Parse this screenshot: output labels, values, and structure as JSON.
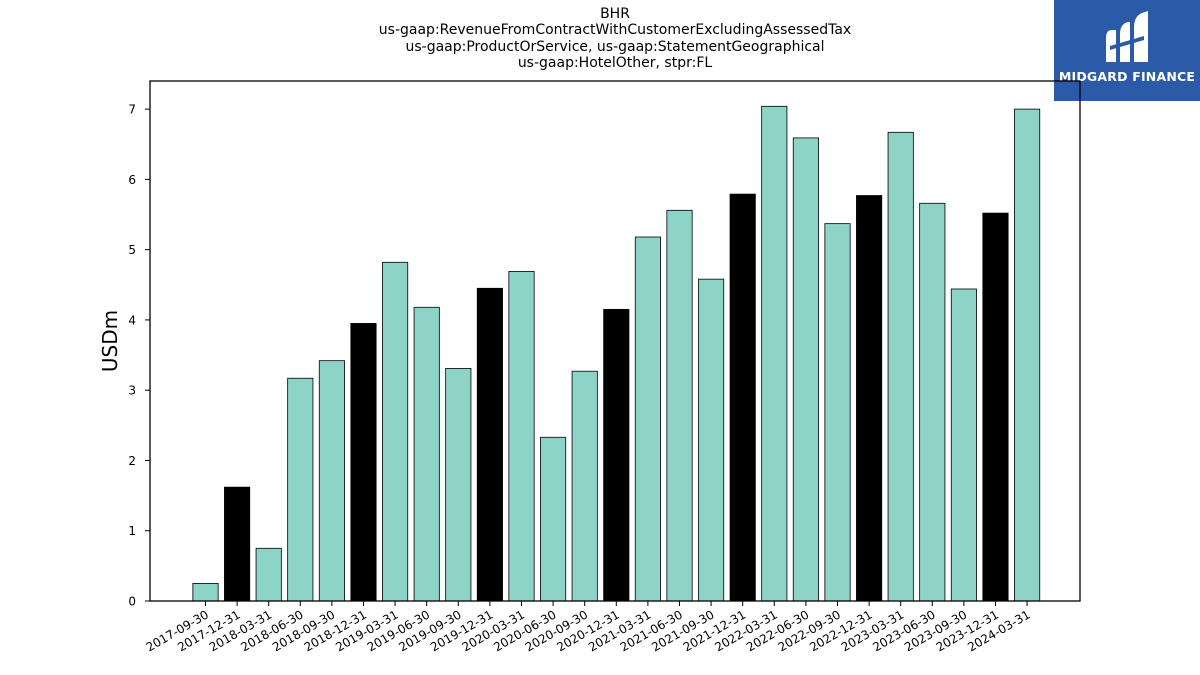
{
  "header": {
    "title_lines": [
      "BHR",
      "us-gaap:RevenueFromContractWithCustomerExcludingAssessedTax",
      "us-gaap:ProductOrService, us-gaap:StatementGeographical",
      "us-gaap:HotelOther, stpr:FL"
    ]
  },
  "logo": {
    "text": "MIDGARD FINANCE",
    "icon": "midgard-logo-icon",
    "background_color": "#2b5aa8",
    "text_color": "#ffffff"
  },
  "chart_data": {
    "type": "bar",
    "title": "BHR",
    "subtitle_lines": [
      "us-gaap:RevenueFromContractWithCustomerExcludingAssessedTax",
      "us-gaap:ProductOrService, us-gaap:StatementGeographical",
      "us-gaap:HotelOther, stpr:FL"
    ],
    "xlabel": "",
    "ylabel": "USDm",
    "ylim": [
      0,
      7.4
    ],
    "yticks": [
      0,
      1,
      2,
      3,
      4,
      5,
      6,
      7
    ],
    "grid": false,
    "legend": "none",
    "colors": {
      "quarter": "#8dd3c7",
      "year_end": "#000000",
      "edge": "#000000"
    },
    "categories": [
      "2017-09-30",
      "2017-12-31",
      "2018-03-31",
      "2018-06-30",
      "2018-09-30",
      "2018-12-31",
      "2019-03-31",
      "2019-06-30",
      "2019-09-30",
      "2019-12-31",
      "2020-03-31",
      "2020-06-30",
      "2020-09-30",
      "2020-12-31",
      "2021-03-31",
      "2021-06-30",
      "2021-09-30",
      "2021-12-31",
      "2022-03-31",
      "2022-06-30",
      "2022-09-30",
      "2022-12-31",
      "2023-03-31",
      "2023-06-30",
      "2023-09-30",
      "2023-12-31",
      "2024-03-31"
    ],
    "values": [
      0.25,
      1.62,
      0.75,
      3.17,
      3.42,
      3.95,
      4.82,
      4.18,
      3.31,
      4.45,
      4.69,
      2.33,
      3.27,
      4.15,
      5.18,
      5.56,
      4.58,
      5.79,
      7.04,
      6.59,
      5.37,
      5.77,
      6.67,
      5.66,
      4.44,
      5.52,
      7.0
    ],
    "highlight": [
      false,
      true,
      false,
      false,
      false,
      true,
      false,
      false,
      false,
      true,
      false,
      false,
      false,
      true,
      false,
      false,
      false,
      true,
      false,
      false,
      false,
      true,
      false,
      false,
      false,
      true,
      false
    ]
  }
}
